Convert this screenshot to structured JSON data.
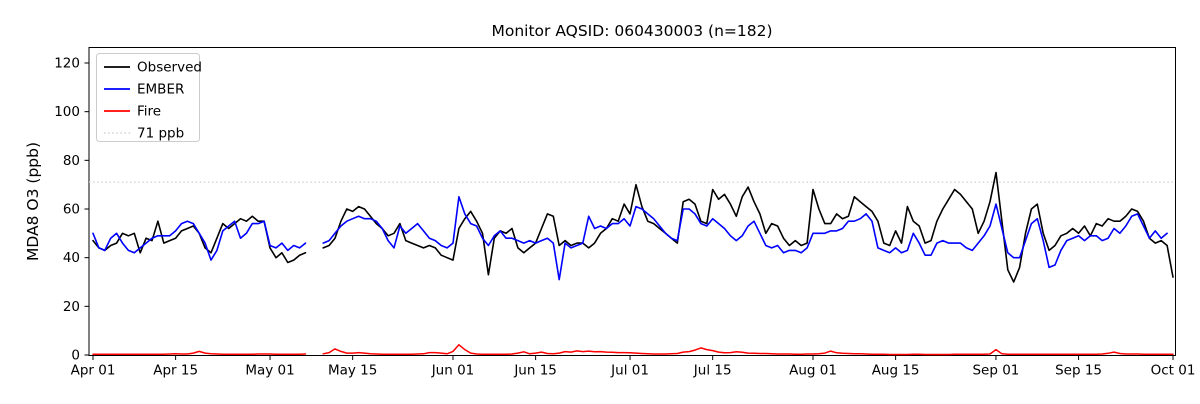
{
  "chart": {
    "title": "Monitor AQSID: 060430003 (n=182)",
    "ylabel": "MDA8 O3 (ppb)"
  },
  "legend": {
    "items": [
      {
        "label": "Observed",
        "color": "#000000",
        "dash": "solid"
      },
      {
        "label": "EMBER",
        "color": "#0000ff",
        "dash": "solid"
      },
      {
        "label": "Fire",
        "color": "#ff0000",
        "dash": "solid"
      },
      {
        "label": "71 ppb",
        "color": "#d3d3d3",
        "dash": "dotted"
      }
    ]
  },
  "chart_data": {
    "type": "line",
    "title": "Monitor AQSID: 060430003 (n=182)",
    "xlabel": "",
    "ylabel": "MDA8 O3 (ppb)",
    "x_start": "Apr 01",
    "x_end": "Oct 01",
    "x_frequency": "daily",
    "n_observations": 182,
    "missing_dates": [
      "May 08",
      "May 09"
    ],
    "x_tick_labels": [
      "Apr 01",
      "Apr 15",
      "May 01",
      "May 15",
      "Jun 01",
      "Jun 15",
      "Jul 01",
      "Jul 15",
      "Aug 01",
      "Aug 15",
      "Sep 01",
      "Sep 15",
      "Oct 01"
    ],
    "x_tick_day_offsets": [
      0,
      14,
      30,
      44,
      61,
      75,
      91,
      105,
      122,
      136,
      153,
      167,
      183
    ],
    "y_ticks": [
      0,
      20,
      40,
      60,
      80,
      100,
      120
    ],
    "ylim": [
      0,
      126
    ],
    "grid": false,
    "legend_position": "upper left",
    "reference_line": {
      "value": 71,
      "label": "71 ppb",
      "color": "#d3d3d3",
      "style": "dotted"
    },
    "series": [
      {
        "name": "Observed",
        "color": "#000000",
        "values": [
          47,
          44,
          43,
          45,
          46,
          50,
          49,
          50,
          42,
          48,
          47,
          55,
          46,
          47,
          48,
          51,
          52,
          53,
          50,
          44,
          42,
          48,
          54,
          52,
          54,
          56,
          55,
          57,
          55,
          55,
          44,
          40,
          42,
          38,
          39,
          41,
          42,
          null,
          null,
          44,
          45,
          48,
          55,
          60,
          59,
          61,
          60,
          57,
          54,
          52,
          49,
          50,
          54,
          47,
          46,
          45,
          44,
          45,
          44,
          41,
          40,
          39,
          52,
          56,
          59,
          55,
          50,
          33,
          48,
          51,
          50,
          52,
          44,
          42,
          44,
          46,
          52,
          58,
          57,
          45,
          47,
          45,
          46,
          46,
          44,
          46,
          50,
          52,
          56,
          55,
          62,
          58,
          70,
          61,
          55,
          54,
          52,
          50,
          48,
          46,
          63,
          64,
          62,
          55,
          54,
          68,
          64,
          66,
          62,
          57,
          65,
          69,
          63,
          58,
          50,
          54,
          53,
          48,
          45,
          47,
          45,
          46,
          68,
          60,
          54,
          54,
          58,
          56,
          57,
          65,
          63,
          61,
          59,
          55,
          46,
          45,
          51,
          46,
          61,
          55,
          53,
          46,
          47,
          55,
          60,
          64,
          68,
          66,
          63,
          60,
          50,
          55,
          63,
          75,
          55,
          35,
          30,
          36,
          50,
          60,
          62,
          50,
          43,
          45,
          49,
          50,
          52,
          50,
          53,
          49,
          54,
          53,
          56,
          55,
          55,
          57,
          60,
          59,
          55,
          48,
          46,
          47,
          45,
          32
        ]
      },
      {
        "name": "EMBER",
        "color": "#0000ff",
        "values": [
          50,
          44,
          43,
          48,
          50,
          46,
          43,
          42,
          44,
          46,
          48,
          49,
          49,
          49,
          51,
          54,
          55,
          54,
          50,
          46,
          39,
          43,
          51,
          53,
          55,
          48,
          50,
          54,
          54,
          55,
          45,
          44,
          46,
          43,
          45,
          44,
          46,
          null,
          null,
          46,
          47,
          50,
          53,
          55,
          56,
          57,
          56,
          56,
          55,
          52,
          47,
          44,
          53,
          50,
          52,
          54,
          51,
          48,
          47,
          45,
          44,
          46,
          65,
          58,
          54,
          53,
          48,
          45,
          49,
          51,
          48,
          48,
          47,
          46,
          47,
          46,
          47,
          48,
          46,
          31,
          46,
          44,
          45,
          46,
          57,
          52,
          53,
          52,
          54,
          54,
          56,
          53,
          61,
          60,
          58,
          56,
          53,
          50,
          48,
          47,
          60,
          60,
          58,
          54,
          53,
          56,
          54,
          52,
          49,
          47,
          49,
          53,
          55,
          50,
          45,
          44,
          45,
          42,
          43,
          43,
          42,
          44,
          50,
          50,
          50,
          51,
          51,
          52,
          55,
          55,
          56,
          58,
          55,
          44,
          43,
          42,
          44,
          42,
          43,
          50,
          46,
          41,
          41,
          46,
          47,
          46,
          46,
          46,
          44,
          43,
          46,
          49,
          53,
          62,
          52,
          42,
          40,
          40,
          47,
          54,
          56,
          47,
          36,
          37,
          43,
          47,
          48,
          49,
          47,
          49,
          49,
          47,
          48,
          52,
          50,
          53,
          57,
          58,
          53,
          48,
          51,
          48,
          50,
          null
        ]
      },
      {
        "name": "Fire",
        "color": "#ff0000",
        "values": [
          0.3,
          0.3,
          0.3,
          0.3,
          0.3,
          0.3,
          0.3,
          0.3,
          0.3,
          0.3,
          0.3,
          0.3,
          0.3,
          0.4,
          0.5,
          0.4,
          0.4,
          0.8,
          1.5,
          0.8,
          0.5,
          0.4,
          0.3,
          0.3,
          0.3,
          0.3,
          0.3,
          0.3,
          0.4,
          0.4,
          0.4,
          0.3,
          0.3,
          0.3,
          0.3,
          0.3,
          0.4,
          null,
          null,
          0.5,
          1.0,
          2.5,
          1.5,
          0.8,
          0.8,
          1.0,
          0.8,
          0.5,
          0.4,
          0.3,
          0.3,
          0.3,
          0.3,
          0.3,
          0.3,
          0.4,
          0.5,
          1.0,
          1.0,
          0.8,
          0.5,
          1.5,
          4.2,
          2.2,
          0.8,
          0.4,
          0.3,
          0.3,
          0.3,
          0.3,
          0.3,
          0.4,
          0.8,
          1.3,
          0.5,
          0.8,
          1.2,
          0.6,
          0.5,
          0.8,
          1.4,
          1.2,
          1.7,
          1.4,
          1.6,
          1.3,
          1.4,
          1.2,
          1.1,
          1.0,
          1.0,
          0.9,
          0.8,
          0.6,
          0.5,
          0.4,
          0.4,
          0.4,
          0.5,
          0.6,
          1.2,
          1.4,
          2.0,
          2.9,
          2.2,
          1.8,
          1.2,
          0.9,
          1.0,
          1.3,
          1.1,
          0.8,
          0.7,
          0.6,
          0.6,
          0.5,
          0.4,
          0.4,
          0.4,
          0.3,
          0.3,
          0.4,
          0.4,
          0.5,
          0.8,
          1.6,
          0.9,
          0.7,
          0.6,
          0.5,
          0.5,
          0.4,
          0.3,
          0.3,
          0.3,
          0.2,
          0.2,
          0.2,
          0.2,
          0.3,
          0.3,
          0.2,
          0.2,
          0.2,
          0.2,
          0.2,
          0.3,
          0.3,
          0.3,
          0.3,
          0.3,
          0.3,
          0.4,
          2.2,
          0.5,
          0.3,
          0.3,
          0.3,
          0.3,
          0.3,
          0.3,
          0.3,
          0.3,
          0.3,
          0.3,
          0.3,
          0.3,
          0.3,
          0.3,
          0.3,
          0.3,
          0.4,
          0.7,
          1.2,
          0.6,
          0.4,
          0.4,
          0.4,
          0.3,
          0.3,
          0.3,
          0.3,
          0.3,
          0.3
        ]
      }
    ]
  }
}
